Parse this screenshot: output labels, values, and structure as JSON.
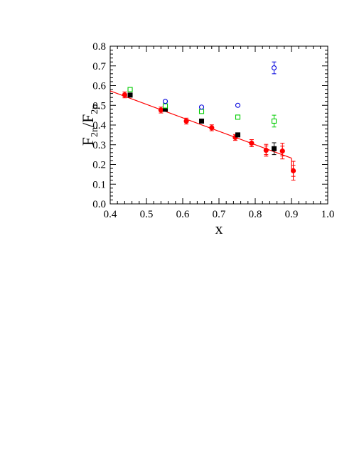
{
  "chart_data": {
    "type": "scatter",
    "title": "",
    "xlabel": "x",
    "ylabel": {
      "main": "F",
      "sub1": "2n",
      "sep": "/F",
      "sub2": "2p"
    },
    "xlim": [
      0.4,
      1.0
    ],
    "ylim": [
      0.0,
      0.8
    ],
    "x_ticks": [
      "0.4",
      "0.5",
      "0.6",
      "0.7",
      "0.8",
      "0.9",
      "1.0"
    ],
    "y_ticks": [
      "0.0",
      "0.1",
      "0.2",
      "0.3",
      "0.4",
      "0.5",
      "0.6",
      "0.7",
      "0.8"
    ],
    "x_tick_values": [
      0.4,
      0.5,
      0.6,
      0.7,
      0.8,
      0.9,
      1.0
    ],
    "y_tick_values": [
      0.0,
      0.1,
      0.2,
      0.3,
      0.4,
      0.5,
      0.6,
      0.7,
      0.8
    ],
    "grid": false,
    "legend": "none",
    "series": [
      {
        "marker": "filled-circle",
        "color": "#ff0000",
        "points": [
          {
            "x": 0.44,
            "y": 0.553,
            "err": 0.015
          },
          {
            "x": 0.54,
            "y": 0.476,
            "err": 0.015
          },
          {
            "x": 0.61,
            "y": 0.42,
            "err": 0.015
          },
          {
            "x": 0.68,
            "y": 0.386,
            "err": 0.015
          },
          {
            "x": 0.745,
            "y": 0.337,
            "err": 0.015
          },
          {
            "x": 0.79,
            "y": 0.308,
            "err": 0.018
          },
          {
            "x": 0.83,
            "y": 0.272,
            "err": 0.022,
            "sys": 0.03
          },
          {
            "x": 0.875,
            "y": 0.268,
            "err": 0.025,
            "sys": 0.04
          },
          {
            "x": 0.905,
            "y": 0.168,
            "err": 0.028,
            "sys": 0.048
          }
        ]
      },
      {
        "marker": "filled-square",
        "color": "#000000",
        "points": [
          {
            "x": 0.455,
            "y": 0.552,
            "err": 0.008
          },
          {
            "x": 0.552,
            "y": 0.48,
            "err": 0.008
          },
          {
            "x": 0.652,
            "y": 0.42,
            "err": 0.008
          },
          {
            "x": 0.752,
            "y": 0.35,
            "err": 0.008
          },
          {
            "x": 0.852,
            "y": 0.28,
            "err": 0.03
          }
        ]
      },
      {
        "marker": "open-square",
        "color": "#00cc00",
        "points": [
          {
            "x": 0.455,
            "y": 0.58,
            "err": 0.006
          },
          {
            "x": 0.552,
            "y": 0.497,
            "err": 0.006
          },
          {
            "x": 0.652,
            "y": 0.469,
            "err": 0.006
          },
          {
            "x": 0.752,
            "y": 0.44,
            "err": 0.006
          },
          {
            "x": 0.852,
            "y": 0.42,
            "err": 0.03
          }
        ]
      },
      {
        "marker": "open-circle",
        "color": "#0000dd",
        "points": [
          {
            "x": 0.552,
            "y": 0.52,
            "err": 0.006
          },
          {
            "x": 0.652,
            "y": 0.491,
            "err": 0.006
          },
          {
            "x": 0.752,
            "y": 0.5,
            "err": 0.006
          },
          {
            "x": 0.852,
            "y": 0.69,
            "err": 0.03
          }
        ]
      }
    ],
    "fit_line": {
      "color": "#ff0000",
      "points": [
        [
          0.4,
          0.573
        ],
        [
          0.9,
          0.232
        ]
      ],
      "end_drop": [
        [
          0.9,
          0.232
        ],
        [
          0.9,
          0.168
        ]
      ]
    }
  }
}
